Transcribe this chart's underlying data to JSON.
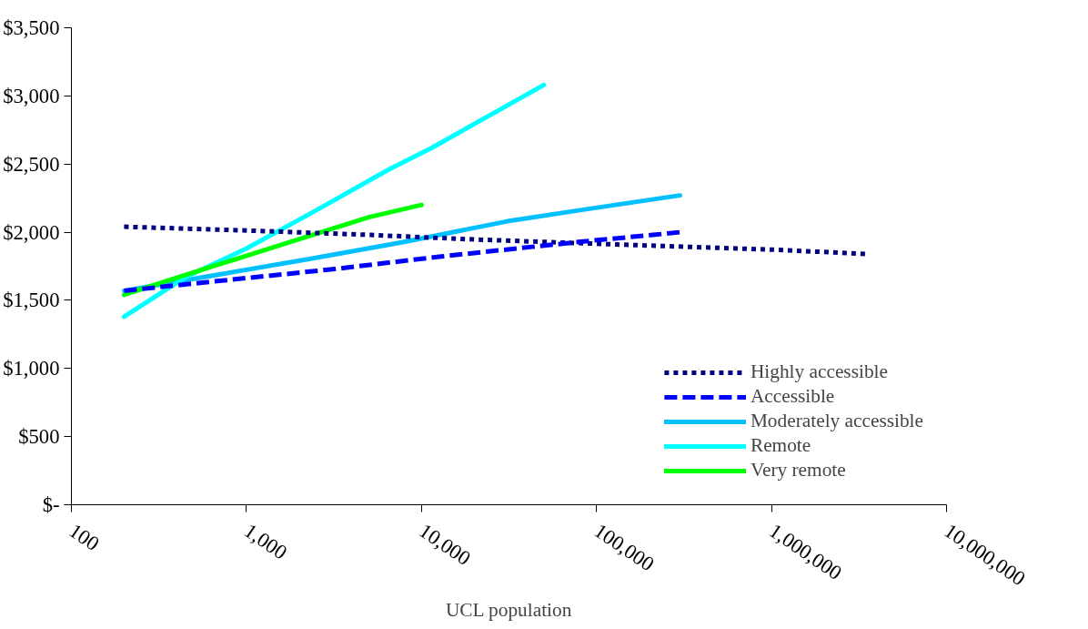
{
  "chart_data": {
    "type": "line",
    "xlabel": "UCL population",
    "log": "x",
    "xlim": [
      100,
      10000000
    ],
    "xticks": [
      {
        "value": 100,
        "label": "100"
      },
      {
        "value": 1000,
        "label": "1,000"
      },
      {
        "value": 10000,
        "label": "10,000"
      },
      {
        "value": 100000,
        "label": "100,000"
      },
      {
        "value": 1000000,
        "label": "1,000,000"
      },
      {
        "value": 10000000,
        "label": "10,000,000"
      }
    ],
    "ylim": [
      0,
      3500
    ],
    "yticks": [
      {
        "value": 0,
        "label": "$-"
      },
      {
        "value": 500,
        "label": "$500"
      },
      {
        "value": 1000,
        "label": "$1,000"
      },
      {
        "value": 1500,
        "label": "$1,500"
      },
      {
        "value": 2000,
        "label": "$2,000"
      },
      {
        "value": 2500,
        "label": "$2,500"
      },
      {
        "value": 3000,
        "label": "$3,000"
      },
      {
        "value": 3500,
        "label": "$3,500"
      }
    ],
    "grid": false,
    "legend": "bottom right",
    "series": [
      {
        "name": "Highly accessible",
        "color": "#000080",
        "line_style": "dotted",
        "x": [
          200,
          1150,
          5100,
          17000,
          130000,
          1100000,
          3500000
        ],
        "values": [
          2040,
          2010,
          1980,
          1950,
          1910,
          1870,
          1840
        ]
      },
      {
        "name": "Accessible",
        "color": "#0000ff",
        "line_style": "dashed",
        "x": [
          200,
          560,
          3200,
          12600,
          81000,
          210000,
          300000
        ],
        "values": [
          1570,
          1630,
          1730,
          1820,
          1930,
          1980,
          2000
        ]
      },
      {
        "name": "Moderately accessible",
        "color": "#00c0ff",
        "line_style": "solid",
        "x": [
          200,
          700,
          2450,
          8100,
          31000,
          89000,
          300000
        ],
        "values": [
          1570,
          1690,
          1810,
          1930,
          2080,
          2170,
          2270
        ]
      },
      {
        "name": "Remote",
        "color": "#00ffff",
        "line_style": "solid",
        "x": [
          200,
          450,
          1000,
          2500,
          6500,
          11500,
          50000
        ],
        "values": [
          1380,
          1670,
          1880,
          2160,
          2460,
          2620,
          3080
        ]
      },
      {
        "name": "Very remote",
        "color": "#00ff00",
        "line_style": "solid",
        "x": [
          200,
          410,
          1350,
          5000,
          10000
        ],
        "values": [
          1540,
          1670,
          1880,
          2110,
          2200
        ]
      }
    ]
  }
}
